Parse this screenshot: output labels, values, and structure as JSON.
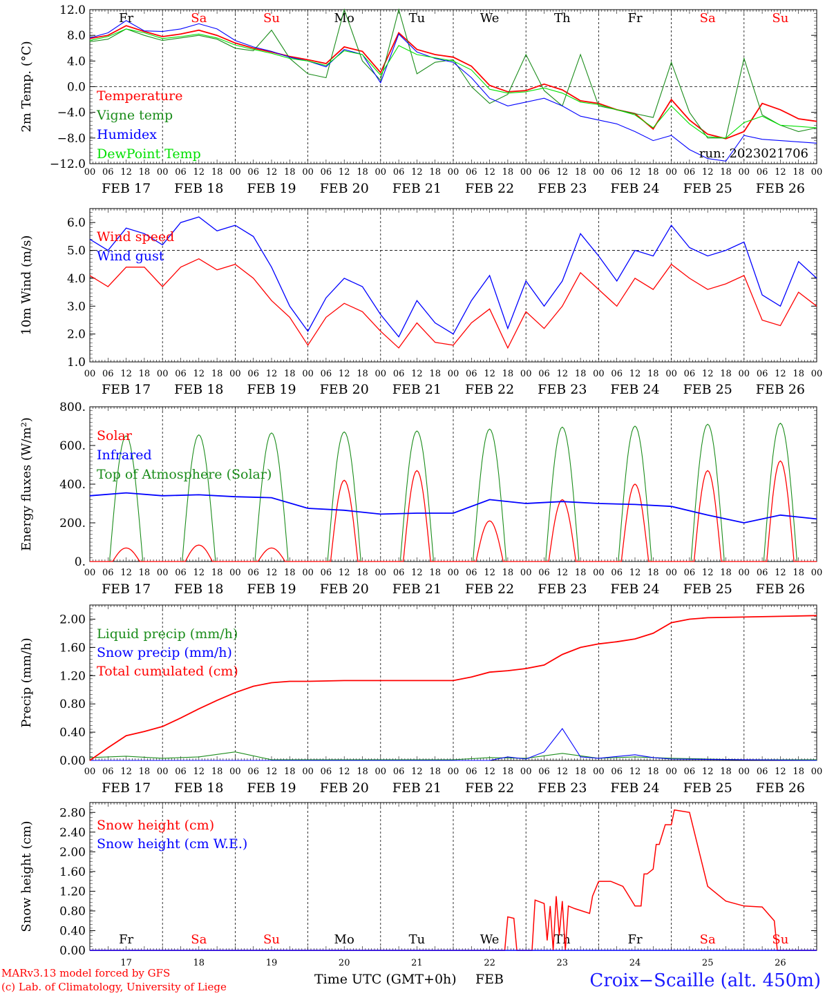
{
  "colors": {
    "red": "#ff0000",
    "green": "#1a8c1a",
    "blue": "#0000ff",
    "lightgreen": "#00e000",
    "darkgreen": "#007a00",
    "axis": "#000000",
    "title": "#1a1aff"
  },
  "days": [
    "Fr",
    "Sa",
    "Su",
    "Mo",
    "Tu",
    "We",
    "Th",
    "Fr",
    "Sa",
    "Su"
  ],
  "day_colors": [
    "black",
    "red",
    "red",
    "black",
    "black",
    "black",
    "black",
    "black",
    "red",
    "red"
  ],
  "date_labels": [
    "FEB 17",
    "FEB 18",
    "FEB 19",
    "FEB 20",
    "FEB 21",
    "FEB 22",
    "FEB 23",
    "FEB 24",
    "FEB 25",
    "FEB 26"
  ],
  "hour_labels": [
    "00",
    "06",
    "12",
    "18"
  ],
  "final_hour_label": "00",
  "day_numbers": [
    "17",
    "18",
    "19",
    "20",
    "21",
    "22",
    "23",
    "24",
    "25",
    "26"
  ],
  "footer": {
    "model": "MARv3.13 model forced by GFS",
    "lab": "(c) Lab. of Climatology, University of Liege",
    "xlabel": "Time UTC (GMT+0h)",
    "month": "FEB",
    "station": "Croix−Scaille (alt. 450m)"
  },
  "chart_data": [
    {
      "type": "line",
      "ylabel": "2m Temp. (°C)",
      "ylim": [
        -12,
        12
      ],
      "yticks": [
        "12.0",
        "8.0",
        "4.0",
        "0.0",
        "−4.0",
        "−8.0",
        "−12.0"
      ],
      "dashed_y": 0,
      "run_label": "run: 2023021706",
      "x_unit": "hours since 2023-02-17 00 UTC",
      "series": [
        {
          "name": "Temperature",
          "color": "red",
          "x": [
            0,
            6,
            12,
            18,
            24,
            30,
            36,
            42,
            48,
            54,
            60,
            66,
            72,
            78,
            84,
            90,
            96,
            102,
            108,
            114,
            120,
            126,
            132,
            138,
            144,
            150,
            156,
            162,
            168,
            174,
            180,
            186,
            192,
            198,
            204,
            210,
            216,
            222,
            228,
            234,
            240
          ],
          "values": [
            7.5,
            8.0,
            9.5,
            8.6,
            7.8,
            8.2,
            8.8,
            8.0,
            6.8,
            6.0,
            5.4,
            4.7,
            4.2,
            3.6,
            6.2,
            5.5,
            2.2,
            8.4,
            5.8,
            5.0,
            4.6,
            3.2,
            0.2,
            -0.8,
            -0.6,
            0.4,
            -0.5,
            -2.2,
            -2.6,
            -3.6,
            -4.2,
            -6.6,
            -2.0,
            -5.2,
            -7.4,
            -8.1,
            -7.0,
            -2.6,
            -3.6,
            -5.0,
            -5.4
          ]
        },
        {
          "name": "Vigne temp",
          "color": "green",
          "x": [
            0,
            6,
            12,
            18,
            24,
            30,
            36,
            42,
            48,
            54,
            60,
            66,
            72,
            78,
            84,
            90,
            96,
            102,
            108,
            114,
            120,
            126,
            132,
            138,
            144,
            150,
            156,
            162,
            168,
            174,
            180,
            186,
            192,
            198,
            204,
            210,
            216,
            222,
            228,
            234,
            240
          ],
          "values": [
            7.0,
            7.4,
            9.0,
            8.0,
            7.2,
            7.6,
            8.0,
            7.4,
            6.0,
            5.6,
            8.8,
            4.4,
            2.0,
            1.4,
            12.0,
            4.0,
            1.0,
            12.0,
            2.0,
            3.8,
            4.2,
            0.0,
            -2.6,
            -1.2,
            5.0,
            -0.6,
            -3.0,
            5.0,
            -3.0,
            -3.6,
            -4.2,
            -4.8,
            3.8,
            -4.0,
            -8.0,
            -8.0,
            4.4,
            -4.4,
            -6.0,
            -7.0,
            -6.4
          ]
        },
        {
          "name": "Humidex",
          "color": "blue",
          "x": [
            0,
            6,
            12,
            18,
            24,
            30,
            36,
            42,
            48,
            54,
            60,
            66,
            72,
            78,
            84,
            90,
            96,
            102,
            108,
            114,
            120,
            126,
            132,
            138,
            144,
            150,
            156,
            162,
            168,
            174,
            180,
            186,
            192,
            198,
            204,
            210,
            216,
            222,
            228,
            234,
            240
          ],
          "values": [
            7.6,
            8.4,
            10.3,
            8.7,
            8.6,
            9.0,
            9.8,
            9.0,
            7.2,
            6.2,
            5.5,
            4.6,
            4.0,
            3.1,
            5.8,
            5.0,
            0.6,
            8.2,
            5.4,
            4.4,
            3.8,
            1.4,
            -1.8,
            -3.0,
            -2.4,
            -1.8,
            -3.0,
            -4.6,
            -5.2,
            -5.8,
            -7.0,
            -8.4,
            -7.6,
            -9.8,
            -11.2,
            -11.6,
            -7.6,
            -8.2,
            -8.4,
            -8.6,
            -8.8
          ]
        },
        {
          "name": "DewPoint Temp",
          "color": "lightgreen",
          "x": [
            0,
            6,
            12,
            18,
            24,
            30,
            36,
            42,
            48,
            54,
            60,
            66,
            72,
            78,
            84,
            90,
            96,
            102,
            108,
            114,
            120,
            126,
            132,
            138,
            144,
            150,
            156,
            162,
            168,
            174,
            180,
            186,
            192,
            198,
            204,
            210,
            216,
            222,
            228,
            234,
            240
          ],
          "values": [
            7.2,
            7.8,
            9.0,
            8.4,
            7.5,
            7.8,
            8.2,
            7.6,
            6.5,
            5.8,
            5.2,
            4.4,
            4.0,
            3.3,
            5.6,
            5.0,
            1.8,
            6.4,
            5.0,
            4.5,
            4.0,
            2.6,
            -0.4,
            -1.0,
            -0.8,
            -0.2,
            -1.0,
            -2.4,
            -2.8,
            -3.6,
            -4.4,
            -6.4,
            -3.0,
            -5.8,
            -7.8,
            -8.0,
            -5.6,
            -4.6,
            -6.0,
            -6.2,
            -6.4
          ]
        }
      ]
    },
    {
      "type": "line",
      "ylabel": "10m Wind (m/s)",
      "ylim": [
        1,
        6.5
      ],
      "yticks": [
        "6.0",
        "5.0",
        "4.0",
        "3.0",
        "2.0",
        "1.0"
      ],
      "dashed_y": 5,
      "series": [
        {
          "name": "Wind speed",
          "color": "red",
          "x": [
            0,
            6,
            12,
            18,
            24,
            30,
            36,
            42,
            48,
            54,
            60,
            66,
            72,
            78,
            84,
            90,
            96,
            102,
            108,
            114,
            120,
            126,
            132,
            138,
            144,
            150,
            156,
            162,
            168,
            174,
            180,
            186,
            192,
            198,
            204,
            210,
            216,
            222,
            228,
            234,
            240
          ],
          "values": [
            4.1,
            3.7,
            4.4,
            4.4,
            3.7,
            4.4,
            4.7,
            4.3,
            4.5,
            4.0,
            3.2,
            2.6,
            1.6,
            2.6,
            3.1,
            2.8,
            2.1,
            1.5,
            2.4,
            1.7,
            1.6,
            2.4,
            2.9,
            1.5,
            2.8,
            2.2,
            3.0,
            4.2,
            3.6,
            3.0,
            4.0,
            3.6,
            4.5,
            4.0,
            3.6,
            3.8,
            4.1,
            2.5,
            2.3,
            3.5,
            3.0
          ]
        },
        {
          "name": "Wind gust",
          "color": "blue",
          "x": [
            0,
            6,
            12,
            18,
            24,
            30,
            36,
            42,
            48,
            54,
            60,
            66,
            72,
            78,
            84,
            90,
            96,
            102,
            108,
            114,
            120,
            126,
            132,
            138,
            144,
            150,
            156,
            162,
            168,
            174,
            180,
            186,
            192,
            198,
            204,
            210,
            216,
            222,
            228,
            234,
            240
          ],
          "values": [
            5.4,
            5.0,
            5.8,
            5.6,
            5.2,
            6.0,
            6.2,
            5.7,
            5.9,
            5.5,
            4.4,
            3.0,
            2.1,
            3.3,
            4.0,
            3.7,
            2.7,
            1.9,
            3.2,
            2.4,
            2.0,
            3.2,
            4.1,
            2.2,
            3.9,
            3.0,
            3.9,
            5.6,
            4.8,
            3.9,
            5.0,
            4.8,
            5.9,
            5.1,
            4.8,
            5.0,
            5.3,
            3.4,
            3.0,
            4.6,
            4.0
          ]
        }
      ]
    },
    {
      "type": "line",
      "ylabel": "Energy fluxes (W/m²)",
      "ylim": [
        0,
        800
      ],
      "yticks": [
        "800.",
        "600.",
        "400.",
        "200.",
        "0."
      ],
      "series": [
        {
          "name": "Solar",
          "color": "red",
          "daily_peaks": [
            70,
            85,
            70,
            420,
            470,
            210,
            320,
            400,
            470,
            520
          ]
        },
        {
          "name": "Infrared",
          "color": "blue",
          "x": [
            0,
            12,
            24,
            36,
            48,
            60,
            72,
            84,
            96,
            108,
            120,
            132,
            144,
            156,
            168,
            180,
            192,
            204,
            216,
            228,
            240
          ],
          "values": [
            340,
            355,
            340,
            345,
            335,
            330,
            275,
            265,
            245,
            250,
            250,
            320,
            300,
            310,
            300,
            295,
            285,
            240,
            200,
            240,
            220
          ]
        },
        {
          "name": "Top of Atmosphere (Solar)",
          "color": "green",
          "daily_peaks": [
            650,
            655,
            665,
            670,
            675,
            685,
            695,
            700,
            710,
            715
          ]
        }
      ]
    },
    {
      "type": "line",
      "ylabel": "Precip (mm/h)",
      "ylim": [
        0,
        2.2
      ],
      "yticks": [
        "2.00",
        "1.60",
        "1.20",
        "0.80",
        "0.40",
        "0.00"
      ],
      "series": [
        {
          "name": "Liquid precip (mm/h)",
          "color": "green",
          "x": [
            0,
            12,
            24,
            36,
            48,
            60,
            120,
            132,
            144,
            156,
            168,
            180,
            192,
            204,
            216,
            228,
            240
          ],
          "values": [
            0.04,
            0.06,
            0.03,
            0.05,
            0.12,
            0.01,
            0.01,
            0.04,
            0.03,
            0.1,
            0.03,
            0.05,
            0.03,
            0.02,
            0.01,
            0.01,
            0.01
          ]
        },
        {
          "name": "Snow precip (mm/h)",
          "color": "blue",
          "x": [
            0,
            132,
            138,
            144,
            150,
            156,
            162,
            168,
            180,
            186,
            192,
            240
          ],
          "values": [
            0,
            0,
            0.05,
            0.02,
            0.12,
            0.45,
            0.05,
            0.03,
            0.08,
            0.04,
            0.02,
            0.0
          ]
        },
        {
          "name": "Total cumulated (cm)",
          "color": "red",
          "x": [
            0,
            6,
            12,
            18,
            24,
            30,
            36,
            42,
            48,
            54,
            60,
            66,
            72,
            84,
            96,
            108,
            120,
            126,
            132,
            138,
            144,
            150,
            156,
            162,
            168,
            174,
            180,
            186,
            192,
            198,
            204,
            216,
            228,
            240
          ],
          "values": [
            0.0,
            0.18,
            0.35,
            0.41,
            0.48,
            0.6,
            0.73,
            0.85,
            0.96,
            1.05,
            1.1,
            1.12,
            1.12,
            1.13,
            1.13,
            1.13,
            1.13,
            1.18,
            1.25,
            1.27,
            1.3,
            1.35,
            1.5,
            1.6,
            1.65,
            1.68,
            1.72,
            1.8,
            1.95,
            2.0,
            2.02,
            2.03,
            2.04,
            2.05
          ]
        }
      ]
    },
    {
      "type": "line",
      "ylabel": "Snow height (cm)",
      "ylim": [
        0,
        3.0
      ],
      "yticks": [
        "2.80",
        "2.40",
        "2.00",
        "1.60",
        "1.20",
        "0.80",
        "0.40",
        "0.00"
      ],
      "series": [
        {
          "name": "Snow height (cm)",
          "color": "red",
          "x": [
            0,
            137,
            138,
            140,
            141,
            146,
            147,
            150,
            151,
            152,
            153,
            154,
            155,
            156,
            157,
            158,
            160,
            165,
            166,
            168,
            172,
            176,
            177,
            180,
            182,
            183,
            184,
            186,
            187,
            188,
            190,
            192,
            193,
            198,
            204,
            210,
            216,
            222,
            226,
            227,
            240
          ],
          "values": [
            0,
            0,
            0.68,
            0.65,
            0,
            0,
            1.02,
            0.95,
            0.2,
            0.9,
            0.0,
            1.1,
            0.3,
            1.0,
            0.0,
            0.9,
            0.85,
            0.75,
            1.1,
            1.4,
            1.4,
            1.3,
            1.2,
            0.9,
            0.9,
            1.55,
            1.55,
            1.65,
            2.15,
            2.15,
            2.55,
            2.55,
            2.85,
            2.8,
            1.3,
            1.0,
            0.9,
            0.88,
            0.6,
            0.0,
            0.0
          ]
        },
        {
          "name": "Snow height (cm W.E.)",
          "color": "blue",
          "x": [
            0,
            240
          ],
          "values": [
            0,
            0
          ]
        }
      ]
    }
  ]
}
